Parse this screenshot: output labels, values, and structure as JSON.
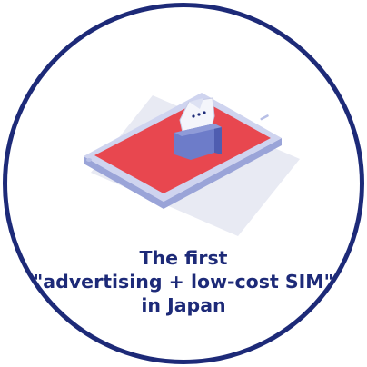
{
  "caption": {
    "line1": "The first",
    "line2": "\"advertising + low-cost SIM\"",
    "line3": "in Japan"
  },
  "colors": {
    "ring": "#1d2a78",
    "caption_text": "#1d2a78",
    "screen": "#e8474f",
    "device_body": "#cfd4ef",
    "device_side": "#9aa4d8",
    "sim_card": "#6d7cc9"
  },
  "icons": {
    "illustration": "smartphone-with-sim-card-icon"
  }
}
